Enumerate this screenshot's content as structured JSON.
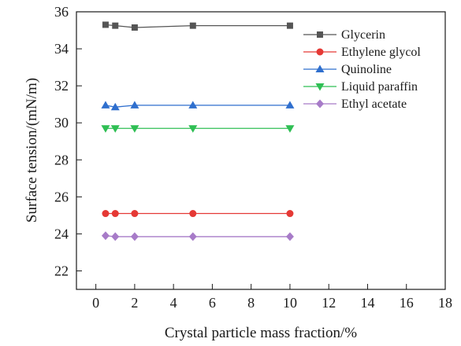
{
  "chart_data": {
    "type": "line",
    "xlabel": "Crystal particle mass fraction/%",
    "ylabel": "Surface tension/(mN/m)",
    "xlim": [
      -1,
      18
    ],
    "ylim": [
      21,
      36
    ],
    "x_ticks": [
      0,
      2,
      4,
      6,
      8,
      10,
      12,
      14,
      16,
      18
    ],
    "y_ticks": [
      22,
      24,
      26,
      28,
      30,
      32,
      34,
      36
    ],
    "grid": false,
    "legend_position": "top-right",
    "series": [
      {
        "name": "Glycerin",
        "color": "#555555",
        "marker": "square",
        "x": [
          0.5,
          1,
          2,
          5,
          10
        ],
        "values": [
          35.3,
          35.25,
          35.15,
          35.25,
          35.25
        ]
      },
      {
        "name": "Ethylene glycol",
        "color": "#e53935",
        "marker": "circle",
        "x": [
          0.5,
          1,
          2,
          5,
          10
        ],
        "values": [
          25.1,
          25.1,
          25.1,
          25.1,
          25.1
        ]
      },
      {
        "name": "Quinoline",
        "color": "#2f6fce",
        "marker": "triangle-up",
        "x": [
          0.5,
          1,
          2,
          5,
          10
        ],
        "values": [
          30.95,
          30.85,
          30.95,
          30.95,
          30.95
        ]
      },
      {
        "name": "Liquid paraffin",
        "color": "#2fbf54",
        "marker": "triangle-down",
        "x": [
          0.5,
          1,
          2,
          5,
          10
        ],
        "values": [
          29.7,
          29.7,
          29.7,
          29.7,
          29.7
        ]
      },
      {
        "name": "Ethyl acetate",
        "color": "#a77bc8",
        "marker": "diamond",
        "x": [
          0.5,
          1,
          2,
          5,
          10
        ],
        "values": [
          23.9,
          23.85,
          23.85,
          23.85,
          23.85
        ]
      }
    ]
  }
}
